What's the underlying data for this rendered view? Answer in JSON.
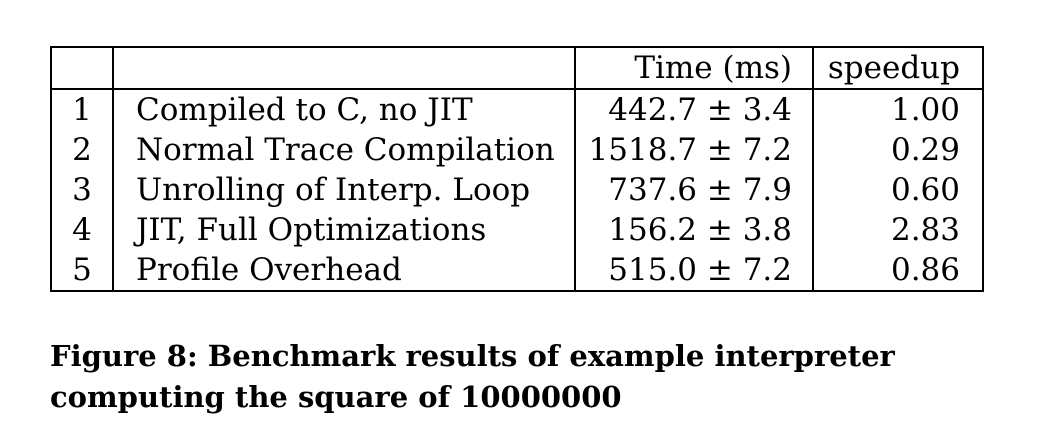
{
  "table": {
    "headers": [
      "",
      "",
      "Time (ms)",
      "speedup"
    ],
    "rows": [
      {
        "index": "1",
        "name": "Compiled to C, no JIT",
        "time": "442.7 ± 3.4",
        "speedup": "1.00"
      },
      {
        "index": "2",
        "name": "Normal Trace Compilation",
        "time": "1518.7 ± 7.2",
        "speedup": "0.29"
      },
      {
        "index": "3",
        "name": "Unrolling of Interp. Loop",
        "time": "737.6 ± 7.9",
        "speedup": "0.60"
      },
      {
        "index": "4",
        "name": "JIT, Full Optimizations",
        "time": "156.2 ± 3.8",
        "speedup": "2.83"
      },
      {
        "index": "5",
        "name": "Profile Overhead",
        "time": "515.0 ± 7.2",
        "speedup": "0.86"
      }
    ]
  },
  "caption": {
    "line1": "Figure 8: Benchmark results of example interpreter",
    "line2": "computing the square of 10000000"
  }
}
